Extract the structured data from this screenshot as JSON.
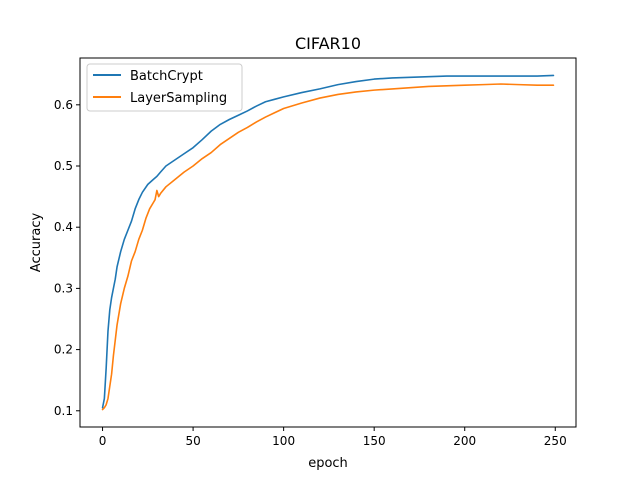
{
  "chart_data": {
    "type": "line",
    "title": "CIFAR10",
    "xlabel": "epoch",
    "ylabel": "Accuracy",
    "xlim": [
      -12.45,
      261.45
    ],
    "ylim": [
      0.0735,
      0.6765
    ],
    "xticks": [
      0,
      50,
      100,
      150,
      200,
      250
    ],
    "yticks": [
      0.1,
      0.2,
      0.3,
      0.4,
      0.5,
      0.6
    ],
    "xtick_labels": [
      "0",
      "50",
      "100",
      "150",
      "200",
      "250"
    ],
    "ytick_labels": [
      "0.1",
      "0.2",
      "0.3",
      "0.4",
      "0.5",
      "0.6"
    ],
    "grid": false,
    "legend_position": "top-left",
    "series": [
      {
        "name": "BatchCrypt",
        "color": "#1f77b4",
        "x": [
          0,
          1,
          2,
          3,
          4,
          5,
          6,
          7,
          8,
          10,
          12,
          14,
          16,
          18,
          20,
          22,
          25,
          28,
          30,
          32,
          35,
          40,
          45,
          50,
          55,
          60,
          65,
          70,
          75,
          80,
          85,
          90,
          95,
          100,
          110,
          120,
          130,
          140,
          150,
          160,
          170,
          180,
          190,
          200,
          210,
          220,
          230,
          240,
          249
        ],
        "y": [
          0.105,
          0.12,
          0.17,
          0.23,
          0.265,
          0.285,
          0.3,
          0.315,
          0.335,
          0.36,
          0.38,
          0.395,
          0.41,
          0.43,
          0.445,
          0.457,
          0.47,
          0.478,
          0.483,
          0.49,
          0.5,
          0.51,
          0.52,
          0.53,
          0.543,
          0.557,
          0.568,
          0.576,
          0.583,
          0.59,
          0.598,
          0.605,
          0.609,
          0.613,
          0.62,
          0.626,
          0.633,
          0.638,
          0.642,
          0.644,
          0.645,
          0.646,
          0.647,
          0.647,
          0.647,
          0.647,
          0.647,
          0.647,
          0.648
        ]
      },
      {
        "name": "LayerSampling",
        "color": "#ff7f0e",
        "x": [
          0,
          1,
          2,
          3,
          4,
          5,
          6,
          7,
          8,
          10,
          12,
          14,
          16,
          18,
          20,
          22,
          24,
          26,
          28,
          29,
          30,
          31,
          32,
          35,
          40,
          45,
          50,
          55,
          60,
          65,
          70,
          75,
          80,
          85,
          90,
          95,
          100,
          110,
          120,
          130,
          140,
          150,
          160,
          170,
          180,
          190,
          200,
          210,
          220,
          230,
          240,
          249
        ],
        "y": [
          0.102,
          0.105,
          0.11,
          0.12,
          0.14,
          0.16,
          0.19,
          0.215,
          0.24,
          0.275,
          0.3,
          0.32,
          0.345,
          0.36,
          0.38,
          0.395,
          0.415,
          0.43,
          0.44,
          0.445,
          0.46,
          0.45,
          0.455,
          0.466,
          0.478,
          0.49,
          0.5,
          0.512,
          0.522,
          0.535,
          0.545,
          0.555,
          0.563,
          0.572,
          0.58,
          0.587,
          0.594,
          0.603,
          0.611,
          0.617,
          0.621,
          0.624,
          0.626,
          0.628,
          0.63,
          0.631,
          0.632,
          0.633,
          0.634,
          0.633,
          0.632,
          0.632
        ]
      }
    ]
  }
}
